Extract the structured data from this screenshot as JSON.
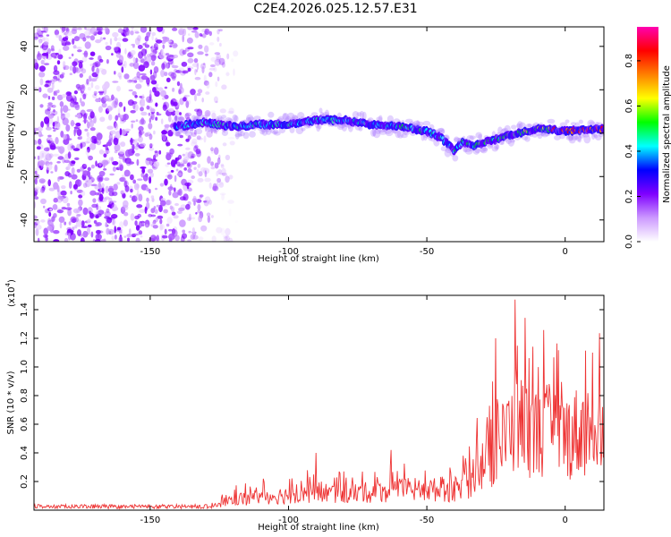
{
  "title": "C2E4.2026.025.12.57.E31",
  "chart_data": [
    {
      "type": "heatmap",
      "id": "spectrogram",
      "xlabel": "Height of straight line (km)",
      "ylabel": "Frequency (Hz)",
      "xlim": [
        -192,
        14
      ],
      "ylim": [
        -50,
        49
      ],
      "x_ticks": [
        -150,
        -100,
        -50,
        0
      ],
      "x_tick_labels": [
        "-150",
        "-100",
        "-50",
        "0"
      ],
      "y_ticks": [
        -40,
        -20,
        0,
        20,
        40
      ],
      "y_tick_labels": [
        "-40",
        "-20",
        "0",
        "20",
        "40"
      ],
      "ridge": {
        "x": [
          -141,
          -130,
          -120,
          -110,
          -100,
          -90,
          -80,
          -70,
          -60,
          -50,
          -45,
          -40,
          -37,
          -33,
          -28,
          -20,
          -10,
          0,
          14
        ],
        "y": [
          3,
          5,
          3,
          4,
          4,
          6,
          6,
          4,
          3,
          1,
          -2,
          -8,
          -4,
          -6,
          -4,
          -1,
          2,
          1,
          2
        ]
      },
      "noise_region_x": [
        -192,
        -128
      ],
      "colorbar": {
        "label": "Normalized spectral amplitude",
        "range": [
          0,
          0.95
        ],
        "ticks": [
          0.0,
          0.2,
          0.4,
          0.6,
          0.8
        ],
        "tick_labels": [
          "0.0",
          "0.2",
          "0.4",
          "0.6",
          "0.8"
        ],
        "colors": [
          "#ffffff",
          "#cc99ff",
          "#7f00ff",
          "#0000ff",
          "#00ffff",
          "#00ff00",
          "#ffff00",
          "#ff8000",
          "#ff0000",
          "#ff00b0"
        ]
      }
    },
    {
      "type": "line",
      "id": "snr",
      "xlabel": "Height of straight line (km)",
      "ylabel": "SNR (10 * v/v)",
      "scale_label": "(x10",
      "scale_exp": "4",
      "xlim": [
        -192,
        14
      ],
      "ylim": [
        0,
        1.5
      ],
      "x_ticks": [
        -150,
        -100,
        -50,
        0
      ],
      "x_tick_labels": [
        "-150",
        "-100",
        "-50",
        "0"
      ],
      "y_ticks": [
        0.2,
        0.4,
        0.6,
        0.8,
        1.0,
        1.2,
        1.4
      ],
      "y_tick_labels": [
        "0.2",
        "0.4",
        "0.6",
        "0.8",
        "1.0",
        "1.2",
        "1.4"
      ],
      "line_color": "#ee3333",
      "envelope": {
        "x": [
          -192,
          -140,
          -128,
          -120,
          -110,
          -100,
          -90,
          -80,
          -70,
          -60,
          -50,
          -40,
          -36,
          -32,
          -28,
          -24,
          -20,
          -18,
          -16,
          -10,
          -5,
          0,
          5,
          10,
          14
        ],
        "y": [
          0.02,
          0.02,
          0.05,
          0.12,
          0.15,
          0.17,
          0.2,
          0.18,
          0.2,
          0.22,
          0.23,
          0.22,
          0.25,
          0.45,
          0.55,
          0.7,
          0.9,
          1.0,
          0.95,
          0.85,
          0.9,
          0.82,
          0.88,
          0.9,
          1.0
        ]
      },
      "peaks": [
        {
          "x": -18,
          "y": 1.47
        },
        {
          "x": 14,
          "y": 1.25
        },
        {
          "x": 10,
          "y": 1.1
        },
        {
          "x": -25,
          "y": 1.2
        },
        {
          "x": -90,
          "y": 0.4
        },
        {
          "x": -63,
          "y": 0.42
        },
        {
          "x": -37,
          "y": 0.38
        }
      ]
    }
  ]
}
